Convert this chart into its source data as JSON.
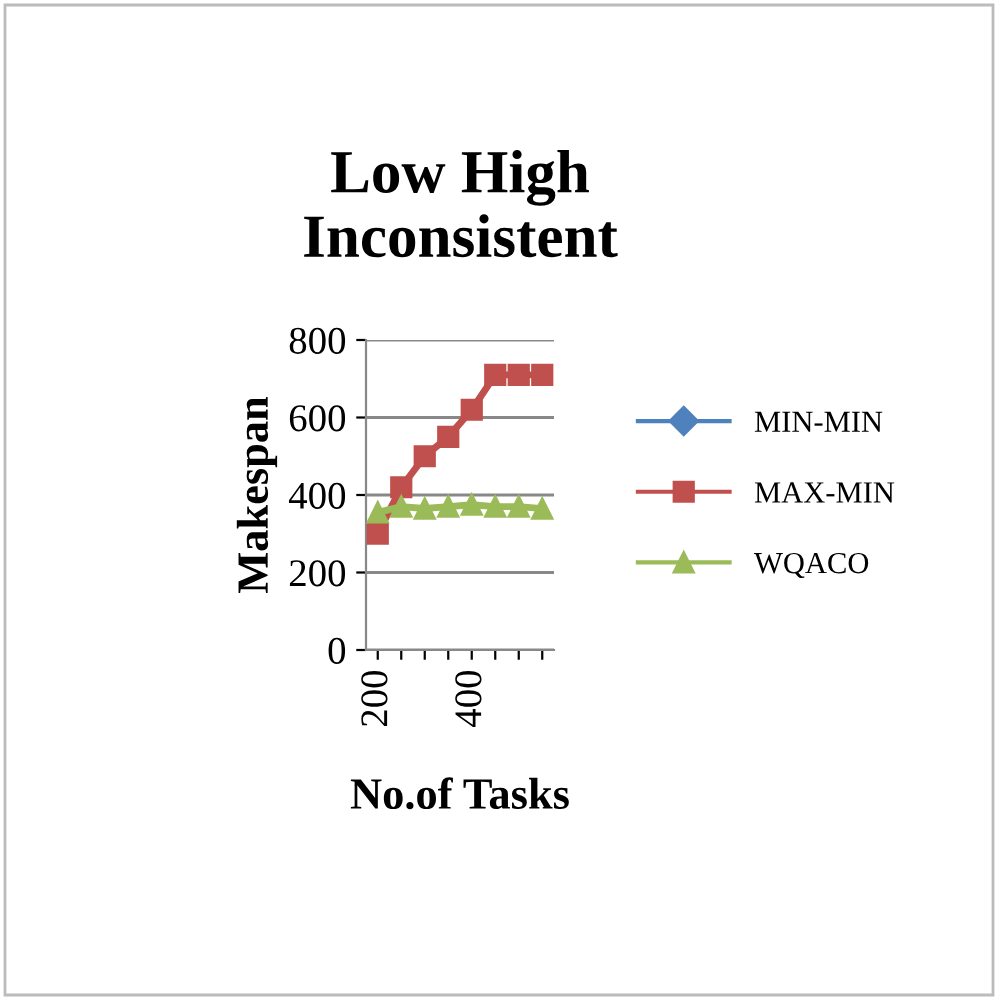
{
  "chart_data": {
    "type": "line",
    "title": "Low High\nInconsistent",
    "xlabel": "No.of Tasks",
    "ylabel": "Makespan",
    "categories": [
      "200",
      null,
      null,
      null,
      "400",
      null,
      null,
      null
    ],
    "series": [
      {
        "name": "MIN-MIN",
        "color": "#4f81bd",
        "marker": "diamond",
        "values": [
          null,
          null,
          null,
          null,
          null,
          null,
          null,
          null
        ]
      },
      {
        "name": "MAX-MIN",
        "color": "#c0504d",
        "marker": "square",
        "values": [
          300,
          420,
          500,
          550,
          620,
          710,
          710,
          710
        ]
      },
      {
        "name": "WQACO",
        "color": "#9bbb59",
        "marker": "triangle",
        "values": [
          355,
          370,
          365,
          370,
          375,
          370,
          370,
          365
        ]
      }
    ],
    "ylim": [
      0,
      800
    ],
    "yticks": [
      0,
      200,
      400,
      600,
      800
    ],
    "grid": "y",
    "legend": "right"
  }
}
